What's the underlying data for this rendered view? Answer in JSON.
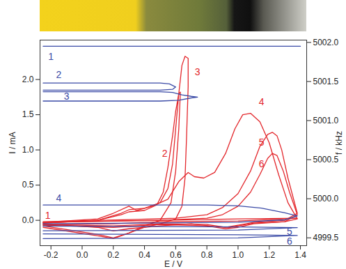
{
  "chart_data": {
    "type": "line",
    "xlabel": "E / V",
    "ylabel": "I / mA",
    "y2label": "f / kHz",
    "xlim": [
      -0.27,
      1.44
    ],
    "ylim": [
      -0.36,
      2.56
    ],
    "y2lim": [
      4999.4,
      5002.03
    ],
    "xticks": [
      {
        "value": -0.2,
        "label": "-0.2"
      },
      {
        "value": 0,
        "label": "0.0"
      },
      {
        "value": 0.2,
        "label": "0.2"
      },
      {
        "value": 0.4,
        "label": "0.4"
      },
      {
        "value": 0.6,
        "label": "0.6"
      },
      {
        "value": 0.8,
        "label": "0.8"
      },
      {
        "value": 1,
        "label": "1.0"
      },
      {
        "value": 1.2,
        "label": "1.2"
      },
      {
        "value": 1.4,
        "label": "1.4"
      }
    ],
    "yticks": [
      {
        "value": 0,
        "label": "0.0"
      },
      {
        "value": 0.5,
        "label": "0.5"
      },
      {
        "value": 1,
        "label": "1.0"
      },
      {
        "value": 1.5,
        "label": "1.5"
      },
      {
        "value": 2,
        "label": "2.0"
      }
    ],
    "y2ticks": [
      {
        "value": 4999.5,
        "label": "4999.5"
      },
      {
        "value": 5000,
        "label": "5000.0"
      },
      {
        "value": 5000.5,
        "label": "5000.5"
      },
      {
        "value": 5001,
        "label": "5001.0"
      },
      {
        "value": 5001.5,
        "label": "5001.5"
      },
      {
        "value": 5002,
        "label": "5002.0"
      }
    ],
    "grid": false,
    "series": [
      {
        "color": "#e3262b",
        "axis": "y",
        "x": [
          -0.25,
          0.2,
          0.5,
          1.0,
          1.38,
          1.0,
          0.5,
          0.2,
          -0.25
        ],
        "values": [
          -0.03,
          -0.01,
          0.0,
          0.02,
          0.03,
          -0.01,
          -0.02,
          -0.05,
          -0.06
        ]
      },
      {
        "color": "#e3262b",
        "axis": "y",
        "x": [
          -0.25,
          0.1,
          0.25,
          0.3,
          0.4,
          0.48,
          0.52,
          0.55,
          0.58,
          0.6,
          0.62,
          0.63,
          0.62,
          0.6,
          0.57,
          0.5,
          0.4,
          0.3,
          0.2,
          0.1,
          -0.25
        ],
        "values": [
          -0.04,
          0.0,
          0.08,
          0.12,
          0.14,
          0.22,
          0.4,
          0.75,
          1.2,
          1.55,
          1.8,
          1.82,
          1.3,
          0.7,
          0.25,
          0.0,
          -0.08,
          -0.18,
          -0.25,
          -0.2,
          -0.08
        ]
      },
      {
        "color": "#e3262b",
        "axis": "y",
        "x": [
          -0.25,
          0.1,
          0.25,
          0.3,
          0.4,
          0.5,
          0.55,
          0.58,
          0.6,
          0.62,
          0.64,
          0.66,
          0.68,
          0.68,
          0.67,
          0.66,
          0.64,
          0.6,
          0.5,
          0.4,
          0.3,
          0.2,
          0.1,
          -0.25
        ],
        "values": [
          -0.04,
          0.0,
          0.1,
          0.15,
          0.17,
          0.25,
          0.45,
          0.8,
          1.3,
          1.8,
          2.2,
          2.33,
          2.3,
          1.9,
          1.2,
          0.6,
          0.2,
          0.02,
          -0.05,
          -0.1,
          -0.18,
          -0.26,
          -0.22,
          -0.1
        ]
      },
      {
        "color": "#e3262b",
        "axis": "y",
        "x": [
          -0.25,
          0.1,
          0.2,
          0.3,
          0.35,
          0.45,
          0.55,
          0.62,
          0.68,
          0.72,
          0.78,
          0.85,
          0.92,
          0.98,
          1.03,
          1.08,
          1.14,
          1.2,
          1.26,
          1.32,
          1.38,
          1.3,
          1.1,
          0.95,
          0.85,
          0.7,
          0.5,
          0.3,
          0.2,
          0.1,
          -0.25
        ],
        "values": [
          -0.03,
          0.02,
          0.1,
          0.2,
          0.14,
          0.2,
          0.3,
          0.55,
          0.68,
          0.62,
          0.6,
          0.68,
          0.95,
          1.3,
          1.5,
          1.52,
          1.4,
          1.1,
          0.65,
          0.25,
          0.02,
          -0.02,
          -0.04,
          -0.1,
          -0.09,
          -0.05,
          -0.08,
          -0.12,
          -0.15,
          -0.1,
          -0.05
        ]
      },
      {
        "color": "#e3262b",
        "axis": "y",
        "x": [
          -0.25,
          0.3,
          0.6,
          0.8,
          0.9,
          1.0,
          1.08,
          1.14,
          1.19,
          1.22,
          1.25,
          1.28,
          1.32,
          1.38,
          1.3,
          1.1,
          1.0,
          0.92,
          0.8,
          0.5,
          0.2,
          -0.25
        ],
        "values": [
          -0.02,
          0.01,
          0.03,
          0.08,
          0.18,
          0.38,
          0.7,
          1.05,
          1.22,
          1.25,
          1.2,
          1.0,
          0.6,
          0.1,
          0.0,
          -0.03,
          -0.07,
          -0.1,
          -0.06,
          -0.05,
          -0.08,
          -0.06
        ]
      },
      {
        "color": "#e3262b",
        "axis": "y",
        "x": [
          -0.25,
          0.5,
          0.8,
          0.9,
          1.0,
          1.08,
          1.14,
          1.19,
          1.22,
          1.25,
          1.29,
          1.33,
          1.38,
          1.3,
          1.1,
          1.0,
          0.92,
          0.8,
          0.5,
          0.2,
          -0.25
        ],
        "values": [
          -0.03,
          0.0,
          0.03,
          0.08,
          0.2,
          0.4,
          0.65,
          0.88,
          0.95,
          0.92,
          0.7,
          0.4,
          0.08,
          -0.02,
          -0.05,
          -0.1,
          -0.12,
          -0.08,
          -0.06,
          -0.1,
          -0.07
        ]
      },
      {
        "color": "#3a4aa6",
        "axis": "y2",
        "x": [
          -0.25,
          1.4
        ],
        "values": [
          5001.95,
          5001.95
        ]
      },
      {
        "color": "#3a4aa6",
        "axis": "y2",
        "x": [
          -0.25,
          0.5,
          0.56,
          0.6,
          0.58,
          0.5,
          -0.25
        ],
        "values": [
          5001.48,
          5001.48,
          5001.47,
          5001.43,
          5001.4,
          5001.39,
          5001.39
        ]
      },
      {
        "color": "#3a4aa6",
        "axis": "y2",
        "x": [
          -0.25,
          0.5,
          0.58,
          0.64,
          0.7,
          0.74,
          0.7,
          0.62,
          0.5,
          -0.25
        ],
        "values": [
          5001.37,
          5001.37,
          5001.36,
          5001.33,
          5001.31,
          5001.3,
          5001.29,
          5001.26,
          5001.25,
          5001.25
        ]
      },
      {
        "color": "#3a4aa6",
        "axis": "y2",
        "x": [
          -0.25,
          0.8,
          1.0,
          1.15,
          1.3,
          1.38,
          1.3,
          1.0,
          0.5,
          -0.25
        ],
        "values": [
          4999.92,
          4999.92,
          4999.91,
          4999.88,
          4999.82,
          4999.78,
          4999.73,
          4999.7,
          4999.69,
          4999.68
        ]
      },
      {
        "color": "#3a4aa6",
        "axis": "y2",
        "x": [
          -0.25,
          1.0,
          1.38,
          1.0,
          -0.25
        ],
        "values": [
          4999.65,
          4999.64,
          4999.63,
          4999.6,
          4999.59
        ]
      },
      {
        "color": "#3a4aa6",
        "axis": "y2",
        "x": [
          -0.25,
          1.0,
          1.38,
          1.0,
          -0.25
        ],
        "values": [
          4999.55,
          4999.54,
          4999.53,
          4999.5,
          4999.49
        ]
      }
    ],
    "annotations": [
      {
        "text": "1",
        "x": -0.22,
        "y": 0.07,
        "axis": "y",
        "color": "#e3262b"
      },
      {
        "text": "2",
        "x": 0.53,
        "y": 0.95,
        "axis": "y",
        "color": "#e3262b"
      },
      {
        "text": "3",
        "x": 0.74,
        "y": 2.1,
        "axis": "y",
        "color": "#e3262b"
      },
      {
        "text": "4",
        "x": 1.15,
        "y": 1.68,
        "axis": "y",
        "color": "#e3262b"
      },
      {
        "text": "5",
        "x": 1.15,
        "y": 1.1,
        "axis": "y",
        "color": "#e3262b"
      },
      {
        "text": "6",
        "x": 1.15,
        "y": 0.8,
        "axis": "y",
        "color": "#e3262b"
      },
      {
        "text": "1",
        "x": -0.2,
        "y": 5001.82,
        "axis": "y2",
        "color": "#3a4aa6"
      },
      {
        "text": "2",
        "x": -0.15,
        "y": 5001.58,
        "axis": "y2",
        "color": "#3a4aa6"
      },
      {
        "text": "3",
        "x": -0.1,
        "y": 5001.31,
        "axis": "y2",
        "color": "#3a4aa6"
      },
      {
        "text": "4",
        "x": -0.15,
        "y": 5000.01,
        "axis": "y2",
        "color": "#3a4aa6"
      },
      {
        "text": "5",
        "x": 1.33,
        "y": 4999.58,
        "axis": "y2",
        "color": "#3a4aa6"
      },
      {
        "text": "6",
        "x": 1.33,
        "y": 4999.45,
        "axis": "y2",
        "color": "#3a4aa6"
      }
    ]
  }
}
